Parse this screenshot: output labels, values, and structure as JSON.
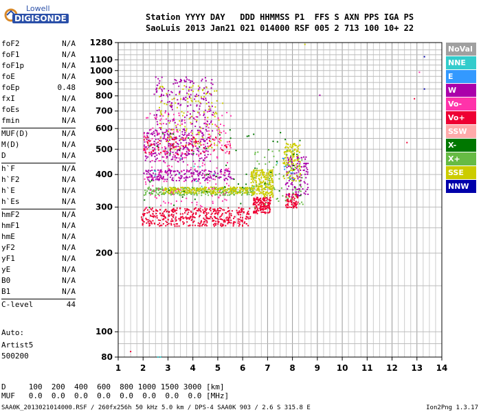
{
  "logo": {
    "top": "Lowell",
    "main": "DIGISONDE"
  },
  "header": {
    "line1": "Station YYYY DAY   DDD HHMMSS P1  FFS S AXN PPS IGA PS",
    "line2": "SaoLuis 2013 Jan21 021 014000 RSF 005 2 713 100 10+ 22"
  },
  "params": [
    [
      [
        "foF2",
        "N/A"
      ],
      [
        "foF1",
        "N/A"
      ],
      [
        "foF1p",
        "N/A"
      ],
      [
        "foE",
        "N/A"
      ],
      [
        "foEp",
        "0.48"
      ],
      [
        "fxI",
        "N/A"
      ],
      [
        "foEs",
        "N/A"
      ],
      [
        "fmin",
        "N/A"
      ]
    ],
    [
      [
        "MUF(D)",
        "N/A"
      ],
      [
        "M(D)",
        "N/A"
      ],
      [
        "D",
        "N/A"
      ]
    ],
    [
      [
        "h`F",
        "N/A"
      ],
      [
        "h`F2",
        "N/A"
      ],
      [
        "h`E",
        "N/A"
      ],
      [
        "h`Es",
        "N/A"
      ]
    ],
    [
      [
        "hmF2",
        "N/A"
      ],
      [
        "hmF1",
        "N/A"
      ],
      [
        "hmE",
        "N/A"
      ],
      [
        "yF2",
        "N/A"
      ],
      [
        "yF1",
        "N/A"
      ],
      [
        "yE",
        "N/A"
      ],
      [
        "B0",
        "N/A"
      ],
      [
        "B1",
        "N/A"
      ]
    ],
    [
      [
        "C-level",
        "44"
      ]
    ]
  ],
  "auto": {
    "label": "Auto:",
    "artist": "Artist5",
    "code": "500200"
  },
  "legend": [
    {
      "label": "NoVal",
      "color": "#a0a0a0"
    },
    {
      "label": "NNE",
      "color": "#33cccc"
    },
    {
      "label": "E",
      "color": "#3399ff"
    },
    {
      "label": "W",
      "color": "#aa00aa"
    },
    {
      "label": "Vo-",
      "color": "#ff33aa"
    },
    {
      "label": "Vo+",
      "color": "#ee0033"
    },
    {
      "label": "SSW",
      "color": "#ffaaaa"
    },
    {
      "label": "X-",
      "color": "#007700"
    },
    {
      "label": "X+",
      "color": "#66bb44"
    },
    {
      "label": "SSE",
      "color": "#cccc00"
    },
    {
      "label": "NNW",
      "color": "#0000aa"
    }
  ],
  "footer": {
    "d_line": "D     100  200  400  600  800 1000 1500 3000 [km]",
    "muf_line": "MUF   0.0  0.0  0.0  0.0  0.0  0.0  0.0  0.0 [MHz]",
    "file_line": "SAA0K_2013021014000.RSF / 260fx256h 50 kHz 5.0 km / DPS-4 SAA0K 903 / 2.6 S 315.8 E",
    "version": "Ion2Png 1.3.17"
  },
  "chart_data": {
    "type": "scatter",
    "title": "",
    "xlabel": "",
    "ylabel": "",
    "xlim": [
      1,
      14
    ],
    "ylim": [
      80,
      1280
    ],
    "y_scale": "log",
    "xticks": [
      1,
      2,
      3,
      4,
      5,
      6,
      7,
      8,
      9,
      10,
      11,
      12,
      13,
      14
    ],
    "yticks": [
      80,
      100,
      200,
      300,
      400,
      500,
      600,
      700,
      800,
      900,
      1000,
      1100,
      1280
    ],
    "grid": true,
    "series_regions": [
      {
        "name": "Vo+",
        "x": [
          1.9,
          6.3
        ],
        "y": [
          255,
          300
        ],
        "n": 420
      },
      {
        "name": "Vo+",
        "x": [
          6.4,
          7.1
        ],
        "y": [
          285,
          330
        ],
        "n": 160
      },
      {
        "name": "Vo+",
        "x": [
          7.7,
          8.2
        ],
        "y": [
          300,
          340
        ],
        "n": 80
      },
      {
        "name": "X+",
        "x": [
          2.0,
          6.4
        ],
        "y": [
          335,
          360
        ],
        "n": 260
      },
      {
        "name": "SSE",
        "x": [
          2.8,
          6.5
        ],
        "y": [
          340,
          360
        ],
        "n": 220
      },
      {
        "name": "SSE",
        "x": [
          6.3,
          7.2
        ],
        "y": [
          330,
          420
        ],
        "n": 220
      },
      {
        "name": "SSE",
        "x": [
          7.6,
          8.3
        ],
        "y": [
          380,
          530
        ],
        "n": 140
      },
      {
        "name": "W",
        "x": [
          2.0,
          5.6
        ],
        "y": [
          380,
          420
        ],
        "n": 200
      },
      {
        "name": "W",
        "x": [
          7.7,
          8.6
        ],
        "y": [
          330,
          470
        ],
        "n": 110
      },
      {
        "name": "W",
        "x": [
          2.0,
          4.6
        ],
        "y": [
          450,
          600
        ],
        "n": 180
      },
      {
        "name": "Vo-",
        "x": [
          2.0,
          5.5
        ],
        "y": [
          300,
          700
        ],
        "n": 260
      },
      {
        "name": "W",
        "x": [
          2.4,
          4.8
        ],
        "y": [
          450,
          950
        ],
        "n": 240
      },
      {
        "name": "SSE",
        "x": [
          2.6,
          5.2
        ],
        "y": [
          500,
          880
        ],
        "n": 120
      },
      {
        "name": "X-",
        "x": [
          2.0,
          8.4
        ],
        "y": [
          300,
          600
        ],
        "n": 60
      },
      {
        "name": "X+",
        "x": [
          6.3,
          8.4
        ],
        "y": [
          300,
          500
        ],
        "n": 70
      },
      {
        "name": "Vo+",
        "x": [
          2.0,
          5.5
        ],
        "y": [
          480,
          560
        ],
        "n": 90
      },
      {
        "name": "NNE",
        "x": [
          2.4,
          8.0
        ],
        "y": [
          350,
          500
        ],
        "n": 12
      },
      {
        "name": "E",
        "x": [
          7.5,
          8.1
        ],
        "y": [
          380,
          470
        ],
        "n": 10
      }
    ],
    "isolated_points": [
      {
        "name": "Vo+",
        "x": 1.5,
        "y": 84
      },
      {
        "name": "NNW",
        "x": 13.3,
        "y": 1130
      },
      {
        "name": "NNW",
        "x": 13.3,
        "y": 850
      },
      {
        "name": "Vo-",
        "x": 13.1,
        "y": 985
      },
      {
        "name": "Vo+",
        "x": 12.9,
        "y": 780
      },
      {
        "name": "W",
        "x": 9.1,
        "y": 805
      },
      {
        "name": "SSE",
        "x": 8.5,
        "y": 1260
      },
      {
        "name": "Vo+",
        "x": 12.6,
        "y": 530
      },
      {
        "name": "NNE",
        "x": 2.6,
        "y": 80
      },
      {
        "name": "NNE",
        "x": 2.7,
        "y": 80
      }
    ]
  }
}
